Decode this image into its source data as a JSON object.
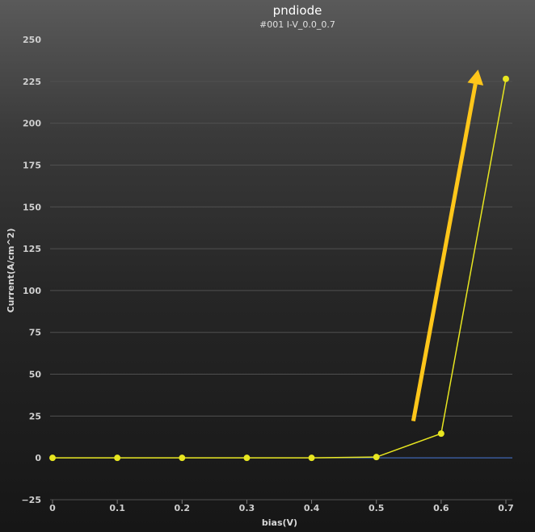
{
  "chart_data": {
    "type": "line",
    "title": "pndiode",
    "subtitle": "#001 I-V_0.0_0.7",
    "xlabel": "bias(V)",
    "ylabel": "Current(A/cm^2)",
    "xlim": [
      0,
      0.7
    ],
    "ylim": [
      -25,
      250
    ],
    "x_ticks": [
      "0",
      "0.1",
      "0.2",
      "0.3",
      "0.4",
      "0.5",
      "0.6",
      "0.7"
    ],
    "y_ticks": [
      "250",
      "225",
      "200",
      "175",
      "150",
      "125",
      "100",
      "75",
      "50",
      "25",
      "0",
      "−25"
    ],
    "grid": true,
    "series": [
      {
        "color": "#e8e620",
        "x": [
          0,
          0.1,
          0.2,
          0.3,
          0.4,
          0.5,
          0.6,
          0.7
        ],
        "y": [
          0,
          0,
          0,
          0,
          0,
          0.5,
          14.5,
          226.5
        ]
      }
    ],
    "reference_line": {
      "y": 0,
      "color": "#3f6fd0"
    },
    "annotation_arrow": {
      "color": "#ffc61a",
      "from": [
        0.557,
        22
      ],
      "to": [
        0.657,
        232
      ]
    }
  }
}
